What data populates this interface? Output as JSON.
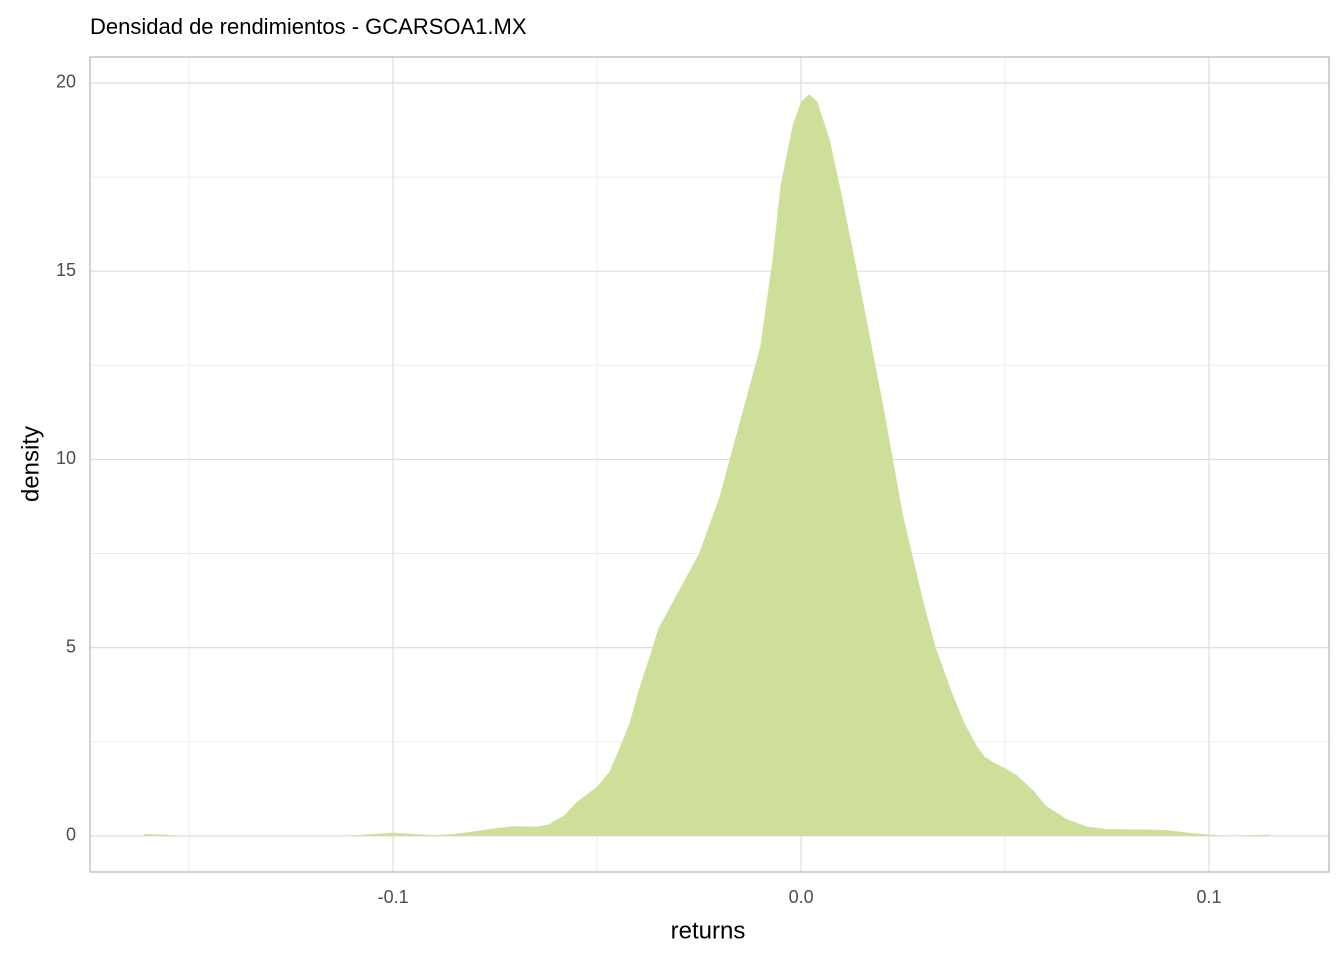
{
  "chart_data": {
    "type": "density",
    "title": "Densidad de rendimientos - GCARSOA1.MX",
    "x_label": "returns",
    "y_label": "density",
    "x": [
      -0.161,
      -0.156,
      -0.152,
      -0.112,
      -0.105,
      -0.1,
      -0.095,
      -0.09,
      -0.085,
      -0.08,
      -0.075,
      -0.07,
      -0.065,
      -0.062,
      -0.058,
      -0.055,
      -0.05,
      -0.047,
      -0.045,
      -0.042,
      -0.04,
      -0.037,
      -0.035,
      -0.03,
      -0.025,
      -0.02,
      -0.017,
      -0.015,
      -0.01,
      -0.007,
      -0.005,
      -0.002,
      0.0,
      0.002,
      0.004,
      0.007,
      0.01,
      0.015,
      0.02,
      0.025,
      0.03,
      0.033,
      0.037,
      0.04,
      0.043,
      0.045,
      0.048,
      0.05,
      0.053,
      0.057,
      0.06,
      0.065,
      0.07,
      0.075,
      0.085,
      0.09,
      0.095,
      0.1,
      0.105,
      0.11,
      0.115
    ],
    "y": [
      0.05,
      0.03,
      0,
      0,
      0.05,
      0.08,
      0.05,
      0.02,
      0.05,
      0.12,
      0.2,
      0.26,
      0.24,
      0.3,
      0.55,
      0.9,
      1.3,
      1.7,
      2.2,
      3.0,
      3.8,
      4.8,
      5.5,
      6.5,
      7.5,
      9.0,
      10.2,
      11.0,
      13.0,
      15.3,
      17.3,
      18.9,
      19.5,
      19.7,
      19.5,
      18.5,
      17.0,
      14.3,
      11.5,
      8.5,
      6.2,
      5.0,
      3.8,
      3.0,
      2.4,
      2.1,
      1.9,
      1.8,
      1.6,
      1.2,
      0.8,
      0.45,
      0.25,
      0.18,
      0.17,
      0.15,
      0.08,
      0.03,
      0.0,
      0.02,
      0.03
    ],
    "color": "#cddf99",
    "xlim": [
      -0.1743,
      0.1294
    ],
    "ylim": [
      -0.96,
      20.69
    ],
    "xticks": [
      {
        "value": -0.1,
        "label": "-0.1"
      },
      {
        "value": 0,
        "label": "0.0"
      },
      {
        "value": 0.1,
        "label": "0.1"
      }
    ],
    "yticks": [
      0,
      5,
      10,
      15,
      20
    ],
    "x_minor_grid": [
      -0.15,
      -0.05,
      0.05
    ],
    "y_minor_grid": [
      2.5,
      7.5,
      12.5,
      17.5
    ],
    "grid": true
  }
}
